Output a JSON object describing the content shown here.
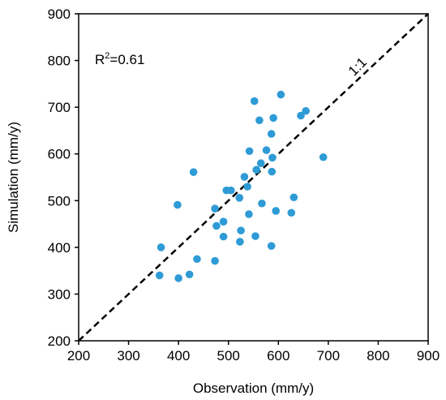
{
  "chart_data": {
    "type": "scatter",
    "title": "",
    "xlabel": "Observation (mm/y)",
    "ylabel": "Simulation (mm/y)",
    "xlim": [
      200,
      900
    ],
    "ylim": [
      200,
      900
    ],
    "xticks": [
      200,
      300,
      400,
      500,
      600,
      700,
      800,
      900
    ],
    "yticks": [
      200,
      300,
      400,
      500,
      600,
      700,
      800,
      900
    ],
    "grid": false,
    "legend": "none",
    "marker_color": "#2E9BD6",
    "annotations": {
      "r2_prefix": "R",
      "r2_superscript": "2",
      "r2_value": "=0.61",
      "identity_line_label": "1:1"
    },
    "identity_line": {
      "from": [
        200,
        200
      ],
      "to": [
        900,
        900
      ],
      "style": "dashed"
    },
    "points": [
      {
        "x": 552,
        "y": 713
      },
      {
        "x": 605,
        "y": 727
      },
      {
        "x": 562,
        "y": 672
      },
      {
        "x": 590,
        "y": 677
      },
      {
        "x": 655,
        "y": 692
      },
      {
        "x": 645,
        "y": 682
      },
      {
        "x": 586,
        "y": 643
      },
      {
        "x": 576,
        "y": 608
      },
      {
        "x": 542,
        "y": 606
      },
      {
        "x": 565,
        "y": 580
      },
      {
        "x": 588,
        "y": 592
      },
      {
        "x": 690,
        "y": 593
      },
      {
        "x": 430,
        "y": 561
      },
      {
        "x": 556,
        "y": 566
      },
      {
        "x": 587,
        "y": 562
      },
      {
        "x": 532,
        "y": 551
      },
      {
        "x": 538,
        "y": 530
      },
      {
        "x": 496,
        "y": 522
      },
      {
        "x": 505,
        "y": 522
      },
      {
        "x": 522,
        "y": 506
      },
      {
        "x": 631,
        "y": 507
      },
      {
        "x": 398,
        "y": 491
      },
      {
        "x": 567,
        "y": 494
      },
      {
        "x": 473,
        "y": 483
      },
      {
        "x": 541,
        "y": 471
      },
      {
        "x": 595,
        "y": 478
      },
      {
        "x": 626,
        "y": 474
      },
      {
        "x": 490,
        "y": 455
      },
      {
        "x": 476,
        "y": 446
      },
      {
        "x": 525,
        "y": 436
      },
      {
        "x": 490,
        "y": 423
      },
      {
        "x": 554,
        "y": 424
      },
      {
        "x": 523,
        "y": 412
      },
      {
        "x": 586,
        "y": 403
      },
      {
        "x": 365,
        "y": 400
      },
      {
        "x": 437,
        "y": 375
      },
      {
        "x": 473,
        "y": 371
      },
      {
        "x": 422,
        "y": 342
      },
      {
        "x": 362,
        "y": 340
      },
      {
        "x": 400,
        "y": 334
      }
    ]
  }
}
